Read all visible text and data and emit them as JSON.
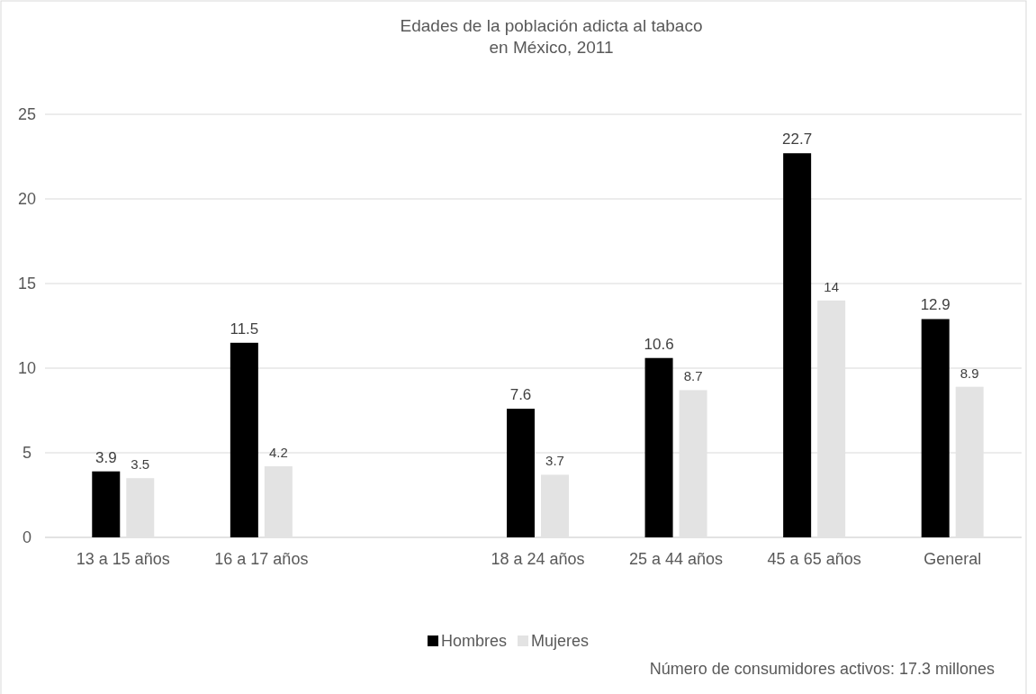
{
  "chart_data": {
    "type": "bar",
    "title": "Edades de la población adicta al tabaco\nen México, 2011",
    "categories": [
      "13 a 15 años",
      "16 a 17 años",
      null,
      "18 a 24 años",
      "25 a 44 años",
      "45 a 65 años",
      "General"
    ],
    "series": [
      {
        "name": "Hombres",
        "color": "#000000",
        "values": [
          3.9,
          11.5,
          null,
          7.6,
          10.6,
          22.7,
          12.9
        ]
      },
      {
        "name": "Mujeres",
        "color": "#e3e3e3",
        "values": [
          3.5,
          4.2,
          null,
          3.7,
          8.7,
          14,
          8.9
        ]
      }
    ],
    "ylim": [
      0,
      25
    ],
    "yticks": [
      0,
      5,
      10,
      15,
      20,
      25
    ],
    "grid": "y",
    "legend": "bottom",
    "data_labels": true,
    "annotations": [
      "Número de consumidores activos: 17.3 millones"
    ]
  }
}
